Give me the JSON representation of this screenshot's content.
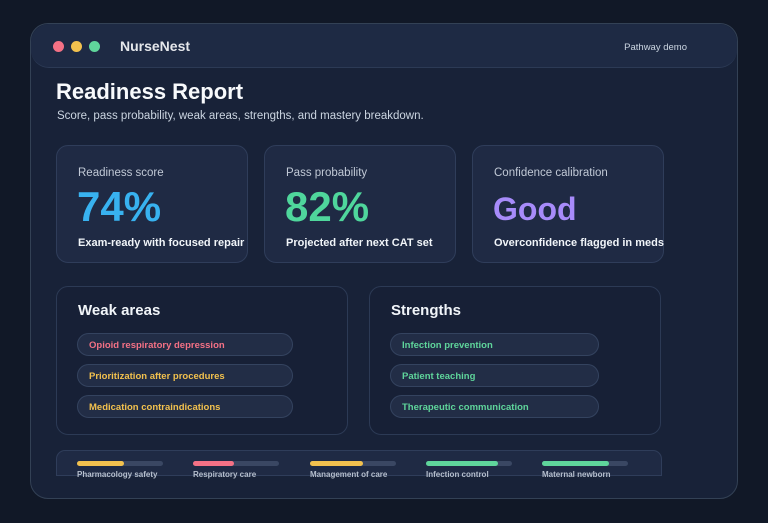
{
  "app": {
    "title": "NurseNest",
    "mode": "Pathway demo"
  },
  "colors": {
    "red": "#f47185",
    "yellow": "#f2c14e",
    "green": "#5fd59b",
    "blue": "#38b2f0",
    "teal": "#4fd69c",
    "purple": "#a78bfa"
  },
  "page": {
    "title": "Readiness Report",
    "subtitle": "Score, pass probability, weak areas, strengths, and mastery breakdown."
  },
  "cards": [
    {
      "label": "Readiness score",
      "value": "74%",
      "note": "Exam-ready with focused repair"
    },
    {
      "label": "Pass probability",
      "value": "82%",
      "note": "Projected after next CAT set"
    },
    {
      "label": "Confidence calibration",
      "value": "Good",
      "note": "Overconfidence flagged in meds"
    }
  ],
  "weak_areas": {
    "title": "Weak areas",
    "items": [
      "Opioid respiratory depression",
      "Prioritization after procedures",
      "Medication contraindications"
    ]
  },
  "strengths": {
    "title": "Strengths",
    "items": [
      "Infection prevention",
      "Patient teaching",
      "Therapeutic communication"
    ]
  },
  "mastery": [
    {
      "label": "Pharmacology safety",
      "level": 0.55
    },
    {
      "label": "Respiratory care",
      "level": 0.48
    },
    {
      "label": "Management of care",
      "level": 0.62
    },
    {
      "label": "Infection control",
      "level": 0.84
    },
    {
      "label": "Maternal newborn",
      "level": 0.78
    }
  ]
}
